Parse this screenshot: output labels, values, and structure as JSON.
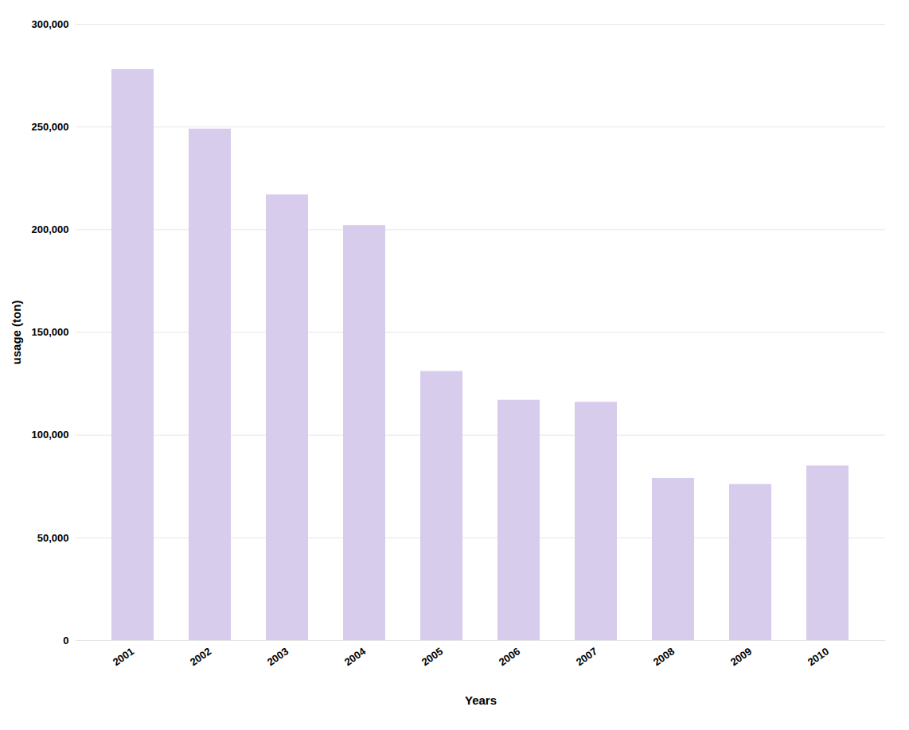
{
  "chart_data": {
    "type": "bar",
    "categories": [
      "2001",
      "2002",
      "2003",
      "2004",
      "2005",
      "2006",
      "2007",
      "2008",
      "2009",
      "2010"
    ],
    "values": [
      278000,
      249000,
      217000,
      202000,
      131000,
      117000,
      116000,
      79000,
      76000,
      85000
    ],
    "color": "#D8CCEC",
    "xlabel": "Years",
    "ylabel": "usage (ton)",
    "ylim": [
      0,
      300000
    ],
    "yticks": [
      0,
      {
        "value": 50000,
        "label": "50,000"
      },
      {
        "value": 100000,
        "label": "100,000"
      },
      {
        "value": 150000,
        "label": "150,000"
      },
      {
        "value": 200000,
        "label": "200,000"
      },
      {
        "value": 250000,
        "label": "250,000"
      },
      {
        "value": 300000,
        "label": "300,000"
      }
    ],
    "grid": true
  }
}
